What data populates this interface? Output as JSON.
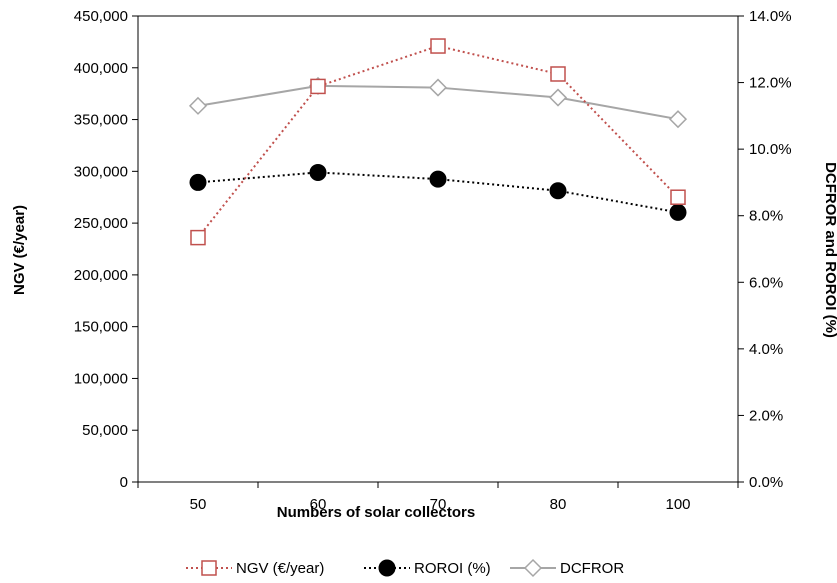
{
  "chart_data": {
    "type": "line",
    "title": "",
    "xlabel": "Numbers of solar collectors",
    "ylabel_left": "NGV (€/year)",
    "ylabel_right": "DCFROR and ROROI (%)",
    "categories": [
      "50",
      "60",
      "70",
      "80",
      "100"
    ],
    "y_left": {
      "range": [
        0,
        450000
      ],
      "ticks": [
        "0",
        "50,000",
        "100,000",
        "150,000",
        "200,000",
        "250,000",
        "300,000",
        "350,000",
        "400,000",
        "450,000"
      ]
    },
    "y_right": {
      "range": [
        0,
        14
      ],
      "ticks": [
        "0.0%",
        "2.0%",
        "4.0%",
        "6.0%",
        "8.0%",
        "10.0%",
        "12.0%",
        "14.0%"
      ]
    },
    "grid": false,
    "legend_position": "bottom",
    "series": [
      {
        "name": "NGV (€/year)",
        "axis": "left",
        "values": [
          236000,
          382000,
          421000,
          394000,
          275000
        ],
        "color": "#c0504d",
        "marker": "square-open",
        "line_style": "dotted"
      },
      {
        "name": "ROROI (%)",
        "axis": "right",
        "values": [
          9.0,
          9.3,
          9.1,
          8.75,
          8.1
        ],
        "color": "#000000",
        "marker": "circle-filled",
        "line_style": "dotted"
      },
      {
        "name": "DCFROR",
        "axis": "right",
        "values": [
          11.3,
          11.9,
          11.85,
          11.55,
          10.9
        ],
        "color": "#a6a6a6",
        "marker": "diamond-open",
        "line_style": "solid"
      }
    ]
  }
}
